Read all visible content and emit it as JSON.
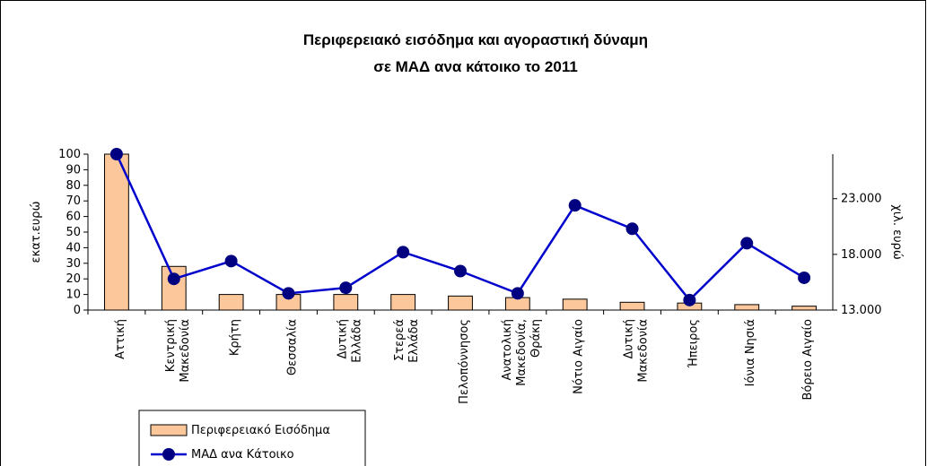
{
  "chart_data": {
    "type": "bar_line",
    "title": "Περιφερειακό εισόδημα και αγοραστική δύναμη\nσε ΜΑΔ ανα κάτοικο το 2011",
    "categories": [
      "Αττική",
      "Κεντρική\nΜακεδονία",
      "Κρήτη",
      "Θεσσαλία",
      "Δυτική\nΕλλάδα",
      "Στερεά\nΕλλάδα",
      "Πελοπόννησος",
      "Ανατολική\nΜακεδονία,\nΘράκη",
      "Νότιο Αιγαίο",
      "Δυτική\nΜακεδονία",
      "Ήπειρος",
      "Ιόνια Νησιά",
      "Βόρειο Αιγαίο"
    ],
    "series": [
      {
        "name": "Περιφερειακό Εισόδημα",
        "color": "#fcc89b",
        "type": "bar",
        "values": [
          100,
          28,
          10,
          10,
          10,
          10,
          9,
          8,
          7,
          5,
          4.5,
          3.5,
          2.5
        ]
      },
      {
        "name": "ΜΑΔ ανα Κάτοικο",
        "color": "#0000cc",
        "type": "line",
        "axis": "y2",
        "values": [
          27000,
          15800,
          17400,
          14500,
          15000,
          18200,
          16500,
          14500,
          22400,
          20300,
          13900,
          19000,
          15900
        ]
      }
    ],
    "ylabel": "εκατ.ευρώ",
    "y2label": "χιλ. ευρώ",
    "ylim": [
      0,
      100
    ],
    "yticks": [
      0,
      10,
      20,
      30,
      40,
      50,
      60,
      70,
      80,
      90,
      100
    ],
    "y2lim": [
      13000,
      27000
    ],
    "y2ticks": [
      {
        "value": 13000,
        "label": "13.000"
      },
      {
        "value": 18000,
        "label": "18.000"
      },
      {
        "value": 23000,
        "label": "23.000"
      }
    ]
  }
}
